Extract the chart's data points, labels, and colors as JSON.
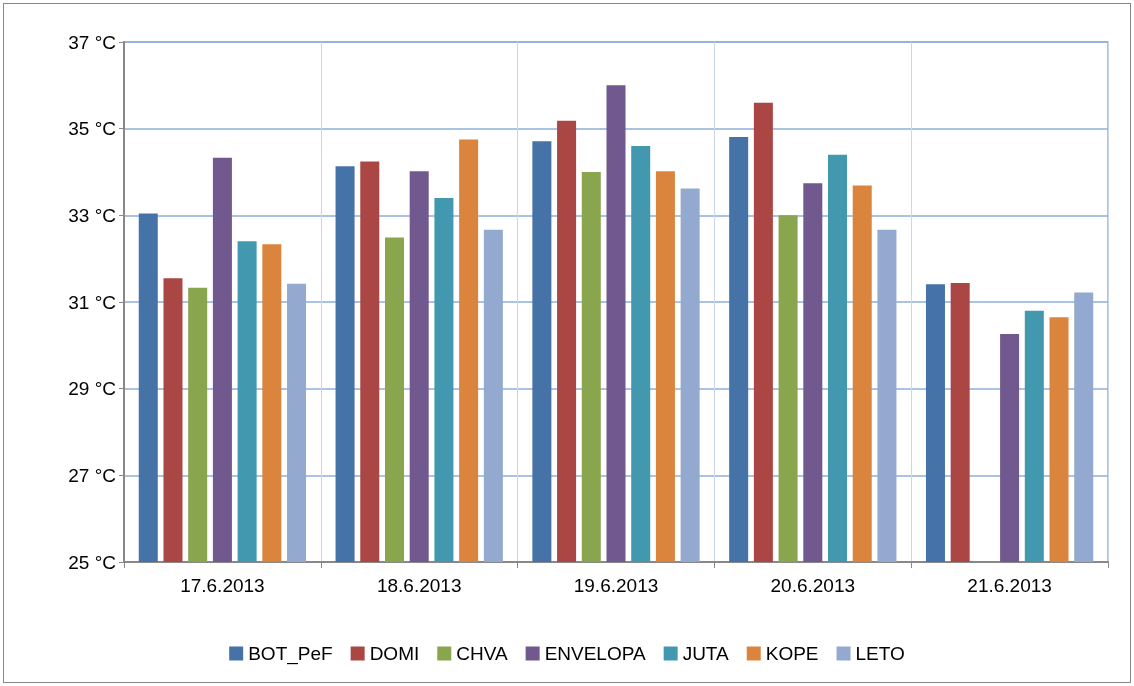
{
  "chart_data": {
    "type": "bar",
    "categories": [
      "17.6.2013",
      "18.6.2013",
      "19.6.2013",
      "20.6.2013",
      "21.6.2013"
    ],
    "series": [
      {
        "name": "BOT_PeF",
        "color": "#4572a7",
        "values": [
          33.04,
          34.13,
          34.71,
          34.81,
          31.41
        ]
      },
      {
        "name": "DOMI",
        "color": "#aa4643",
        "values": [
          31.55,
          34.24,
          35.18,
          35.6,
          31.44
        ]
      },
      {
        "name": "CHVA",
        "color": "#89a54e",
        "values": [
          31.33,
          32.49,
          34.0,
          33.0,
          25.0
        ]
      },
      {
        "name": "ENVELOPA",
        "color": "#71588f",
        "values": [
          34.33,
          34.02,
          36.0,
          33.74,
          30.26
        ]
      },
      {
        "name": "JUTA",
        "color": "#4198af",
        "values": [
          32.4,
          33.4,
          34.6,
          34.4,
          30.8
        ]
      },
      {
        "name": "KOPE",
        "color": "#db843d",
        "values": [
          32.33,
          34.75,
          34.02,
          33.69,
          30.65
        ]
      },
      {
        "name": "LETO",
        "color": "#93a9cf",
        "values": [
          31.42,
          32.67,
          33.62,
          32.67,
          31.22
        ]
      }
    ],
    "ylim": [
      25,
      37
    ],
    "yticks": [
      {
        "value": 25,
        "label": "25 °C"
      },
      {
        "value": 27,
        "label": "27 °C"
      },
      {
        "value": 29,
        "label": "29 °C"
      },
      {
        "value": 31,
        "label": "31 °C"
      },
      {
        "value": 33,
        "label": "33 °C"
      },
      {
        "value": 35,
        "label": "35 °C"
      },
      {
        "value": 37,
        "label": "37 °C"
      }
    ],
    "grid": true,
    "legend": "bottom"
  }
}
